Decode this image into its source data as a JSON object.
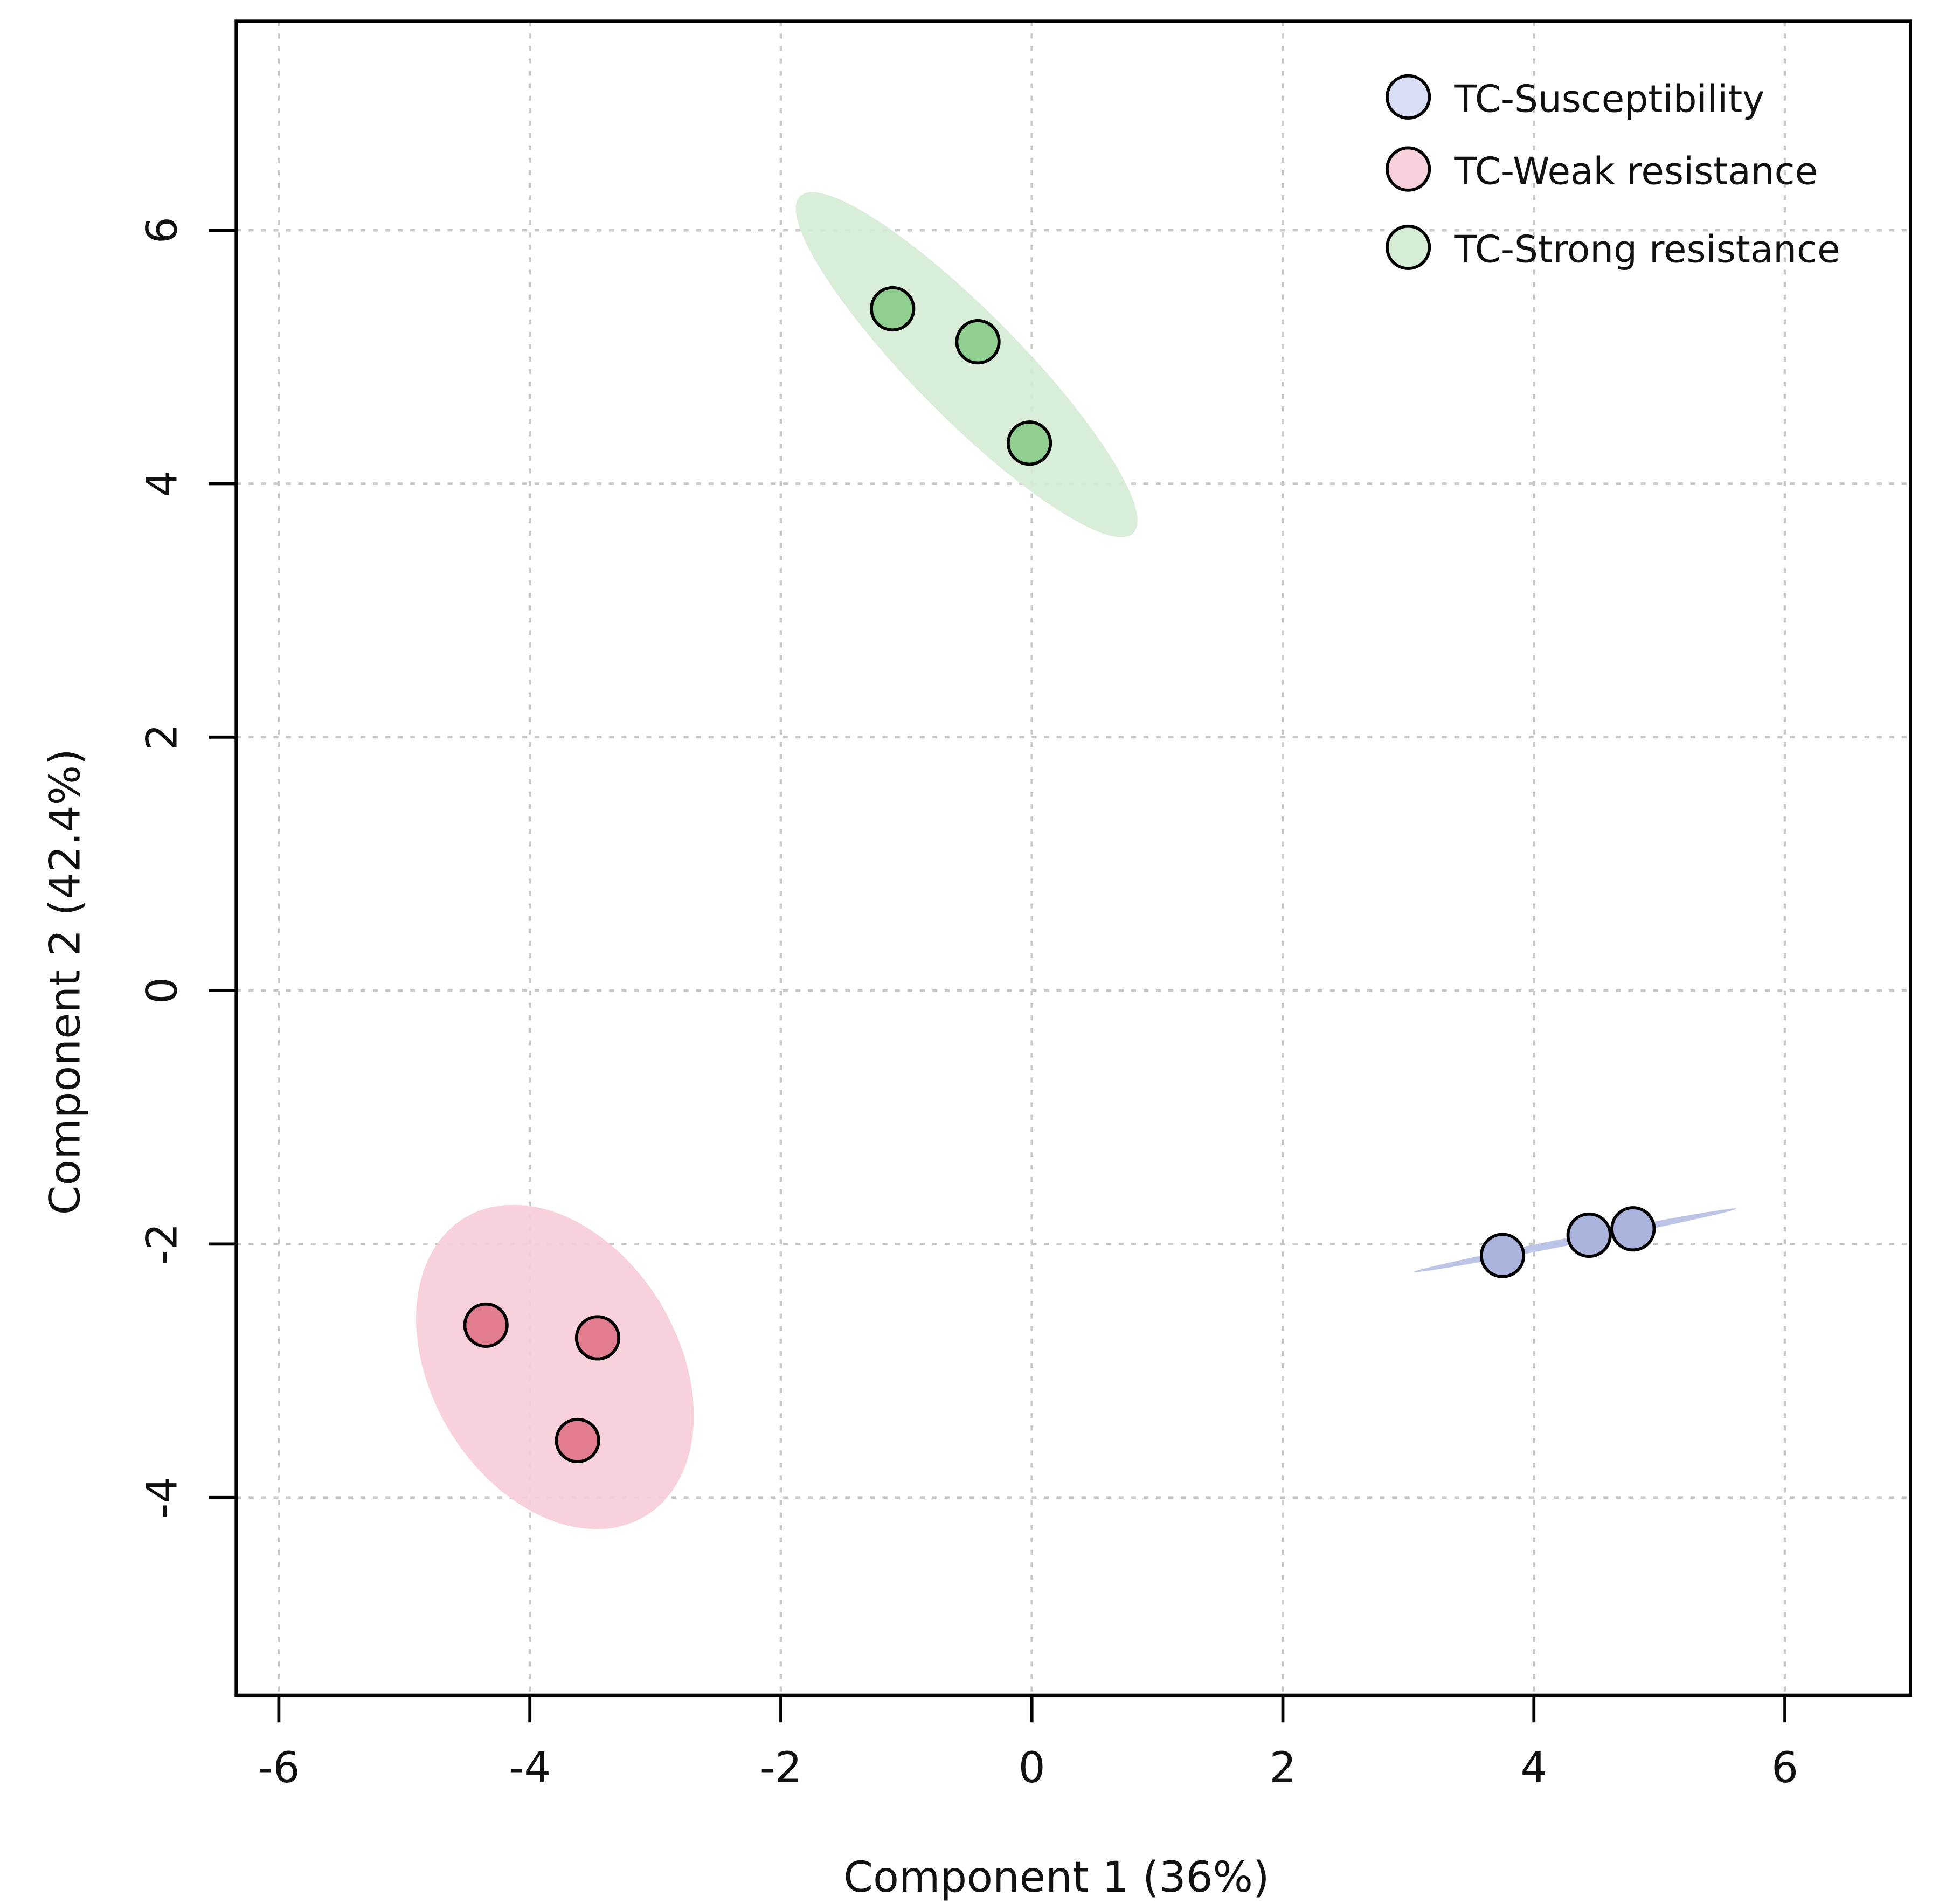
{
  "chart_data": {
    "type": "scatter",
    "title": "",
    "xlabel": "Component 1 (36%)",
    "ylabel": "Component 2 (42.4%)",
    "xlim": [
      -6.34,
      7.0
    ],
    "ylim": [
      -5.56,
      7.65
    ],
    "xticks": [
      -6,
      -4,
      -2,
      0,
      2,
      4,
      6
    ],
    "yticks": [
      -4,
      -2,
      0,
      2,
      4,
      6
    ],
    "grid": true,
    "legend_position": "top-right",
    "series": [
      {
        "name": "TC-Susceptibility",
        "point_color": "#aab4dc",
        "legend_color": "#d8def5",
        "ellipse_color": "#b5bfe3",
        "points": [
          [
            3.75,
            -2.09
          ],
          [
            4.44,
            -1.93
          ],
          [
            4.79,
            -1.88
          ]
        ],
        "ellipse": {
          "center": [
            4.33,
            -1.97
          ],
          "semi_axes": [
            1.31,
            0.03
          ],
          "angle_deg": 11
        }
      },
      {
        "name": "TC-Weak resistance",
        "point_color": "#e27d90",
        "legend_color": "#f8d0d9",
        "ellipse_color": "#f6cdd6",
        "points": [
          [
            -4.35,
            -2.64
          ],
          [
            -3.46,
            -2.74
          ],
          [
            -3.62,
            -3.55
          ]
        ],
        "ellipse": {
          "center": [
            -3.8,
            -2.97
          ],
          "semi_axes": [
            1.38,
            0.98
          ],
          "angle_deg": -58
        }
      },
      {
        "name": "TC-Strong resistance",
        "point_color": "#8fce8f",
        "legend_color": "#d5ecd5",
        "ellipse_color": "#d5ecd5",
        "points": [
          [
            -1.11,
            5.38
          ],
          [
            -0.43,
            5.12
          ],
          [
            -0.02,
            4.32
          ]
        ],
        "ellipse": {
          "center": [
            -0.52,
            4.94
          ],
          "semi_axes": [
            1.88,
            0.42
          ],
          "angle_deg": -45
        }
      }
    ]
  }
}
